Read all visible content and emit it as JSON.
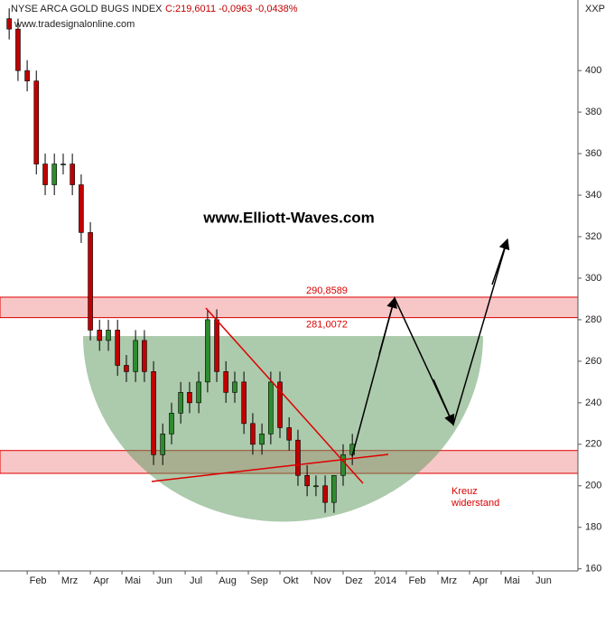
{
  "chart_data": {
    "type": "candlestick",
    "title": "NYSE ARCA GOLD BUGS INDEX",
    "quote": "C:219,6011 -0,0963 -0,0438%",
    "source": "www.tradesignalonline.com",
    "watermark": "www.Elliott-Waves.com",
    "symbol": "XXP",
    "annotation": [
      "Kreuz",
      "widerstand"
    ],
    "x": [
      0.43,
      0.71,
      1.0,
      1.29,
      1.57,
      1.86,
      2.14,
      2.43,
      2.71,
      3.0,
      3.29,
      3.57,
      3.86,
      4.14,
      4.43,
      4.71,
      5.0,
      5.29,
      5.57,
      5.86,
      6.14,
      6.43,
      6.71,
      7.0,
      7.29,
      7.57,
      7.86,
      8.14,
      8.43,
      8.71,
      9.0,
      9.29,
      9.57,
      9.86,
      10.14,
      10.43,
      10.71,
      11.0,
      11.29
    ],
    "open": [
      425,
      420,
      400,
      395,
      355,
      345,
      355,
      355,
      345,
      322,
      275,
      270,
      275,
      258,
      255,
      270,
      255,
      215,
      225,
      235,
      245,
      240,
      250,
      280,
      255,
      245,
      250,
      230,
      220,
      225,
      250,
      228,
      222,
      205,
      200,
      200,
      192,
      205,
      215
    ],
    "high": [
      430,
      425,
      405,
      400,
      360,
      360,
      360,
      360,
      350,
      327,
      280,
      280,
      280,
      263,
      275,
      275,
      260,
      230,
      240,
      250,
      250,
      255,
      285,
      285,
      260,
      255,
      255,
      235,
      230,
      255,
      255,
      233,
      227,
      210,
      205,
      205,
      205,
      220,
      225
    ],
    "low": [
      415,
      395,
      390,
      350,
      340,
      340,
      350,
      340,
      317,
      270,
      265,
      265,
      253,
      250,
      250,
      250,
      210,
      210,
      220,
      230,
      235,
      235,
      245,
      250,
      240,
      240,
      225,
      215,
      215,
      220,
      223,
      217,
      200,
      195,
      195,
      187,
      187,
      200,
      210
    ],
    "close": [
      420,
      400,
      395,
      355,
      345,
      355,
      355,
      345,
      322,
      275,
      270,
      275,
      258,
      255,
      270,
      255,
      215,
      225,
      235,
      245,
      240,
      250,
      280,
      255,
      245,
      250,
      230,
      220,
      225,
      250,
      228,
      222,
      205,
      200,
      200,
      192,
      205,
      215,
      220
    ],
    "up_color": "#2e8b2e",
    "down_color": "#c00000",
    "bands": [
      {
        "values": [
          290.8589,
          281.0072
        ],
        "value_labels": [
          "290,8589",
          "281,0072"
        ]
      },
      {
        "values": [
          217,
          206
        ]
      }
    ],
    "band_color": "#f4b4b4",
    "xlim": [
      0.14,
      18.43
    ],
    "xticks": [
      {
        "value": 1,
        "label": "Feb"
      },
      {
        "value": 2,
        "label": "Mrz"
      },
      {
        "value": 3,
        "label": "Apr"
      },
      {
        "value": 4,
        "label": "Mai"
      },
      {
        "value": 5,
        "label": "Jun"
      },
      {
        "value": 6,
        "label": "Jul"
      },
      {
        "value": 7,
        "label": "Aug"
      },
      {
        "value": 8,
        "label": "Sep"
      },
      {
        "value": 9,
        "label": "Okt"
      },
      {
        "value": 10,
        "label": "Nov"
      },
      {
        "value": 11,
        "label": "Dez"
      },
      {
        "value": 12,
        "label": "2014"
      },
      {
        "value": 13,
        "label": "Feb"
      },
      {
        "value": 14,
        "label": "Mrz"
      },
      {
        "value": 15,
        "label": "Apr"
      },
      {
        "value": 16,
        "label": "Mai"
      },
      {
        "value": 17,
        "label": "Jun"
      }
    ],
    "ylim": [
      159,
      434
    ],
    "yticks": [
      160,
      180,
      200,
      220,
      240,
      260,
      280,
      300,
      320,
      340,
      360,
      380,
      400
    ]
  }
}
